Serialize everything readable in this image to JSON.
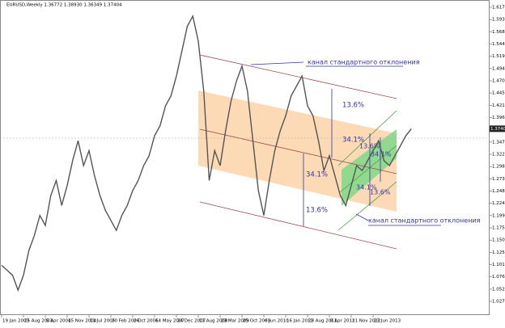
{
  "header": {
    "title": "EURUSD,Weekly  1.36772 1.38930 1.36349 1.37404"
  },
  "chart_data": {
    "type": "line",
    "color": "#555555",
    "categories": [
      "19 Jan 2003",
      null,
      null,
      null,
      "25 Aug 2003",
      null,
      null,
      null,
      "5 Apr 2004",
      null,
      null,
      null,
      "15 Nov 2004",
      null,
      null,
      null,
      "11 Jul 2005",
      null,
      null,
      null,
      "20 Feb 2006",
      null,
      null,
      null,
      "2 Oct 2006",
      null,
      null,
      null,
      "14 May 2007",
      null,
      null,
      null,
      "24 Dec 2007",
      null,
      null,
      null,
      "11 Aug 2008",
      null,
      null,
      null,
      "23 Mar 2009",
      null,
      null,
      null,
      "25 Oct 2009",
      null,
      null,
      null,
      "6 Jun 2010",
      null,
      null,
      null,
      "16 Jan 2011",
      null,
      null,
      null,
      "28 Aug 2011",
      null,
      null,
      null,
      "8 Apr 2012",
      null,
      null,
      null,
      "11 Nov 2012",
      null,
      null,
      null,
      "23 Jun 2013",
      null,
      null,
      null,
      null,
      null,
      null,
      null
    ],
    "values": [
      1.1,
      1.09,
      1.08,
      1.05,
      1.08,
      1.13,
      1.16,
      1.2,
      1.18,
      1.24,
      1.27,
      1.22,
      1.26,
      1.31,
      1.35,
      1.3,
      1.33,
      1.28,
      1.24,
      1.21,
      1.19,
      1.17,
      1.2,
      1.22,
      1.25,
      1.27,
      1.3,
      1.32,
      1.36,
      1.38,
      1.42,
      1.44,
      1.48,
      1.53,
      1.58,
      1.6,
      1.55,
      1.45,
      1.27,
      1.33,
      1.3,
      1.37,
      1.43,
      1.47,
      1.5,
      1.45,
      1.35,
      1.25,
      1.2,
      1.27,
      1.33,
      1.37,
      1.4,
      1.44,
      1.46,
      1.48,
      1.42,
      1.4,
      1.35,
      1.29,
      1.32,
      1.28,
      1.24,
      1.22,
      1.26,
      1.3,
      1.29,
      1.31,
      1.33,
      1.35,
      1.31,
      1.3,
      1.32,
      1.34,
      1.36,
      1.374
    ],
    "ylim": [
      1.0,
      1.6325
    ],
    "yticks": [
      {
        "value": 1.6179,
        "label": "1.61790"
      },
      {
        "value": 1.5933,
        "label": "1.59330"
      },
      {
        "value": 1.5687,
        "label": "1.56870"
      },
      {
        "value": 1.5441,
        "label": "1.54410"
      },
      {
        "value": 1.5195,
        "label": "1.51950"
      },
      {
        "value": 1.4949,
        "label": "1.49490"
      },
      {
        "value": 1.4703,
        "label": "1.47030"
      },
      {
        "value": 1.4457,
        "label": "1.44570"
      },
      {
        "value": 1.4211,
        "label": "1.42110"
      },
      {
        "value": 1.3965,
        "label": "1.39650"
      },
      {
        "value": 1.3473,
        "label": "1.34730"
      },
      {
        "value": 1.3227,
        "label": "1.32270"
      },
      {
        "value": 1.2981,
        "label": "1.29810"
      },
      {
        "value": 1.2735,
        "label": "1.27350"
      },
      {
        "value": 1.2489,
        "label": "1.24890"
      },
      {
        "value": 1.2243,
        "label": "1.22430"
      },
      {
        "value": 1.1997,
        "label": "1.19970"
      },
      {
        "value": 1.1751,
        "label": "1.17510"
      },
      {
        "value": 1.1505,
        "label": "1.15050"
      },
      {
        "value": 1.1259,
        "label": "1.12590"
      },
      {
        "value": 1.1013,
        "label": "1.10130"
      },
      {
        "value": 1.0767,
        "label": "1.07670"
      },
      {
        "value": 1.0521,
        "label": "1.05210"
      },
      {
        "value": 1.0275,
        "label": "1.02750"
      }
    ],
    "current_price": {
      "value": 1.37404,
      "label": "1.37404"
    },
    "annotations": [
      "канал стандартного отклонения",
      "канал стандартного отклонения",
      "13.6%",
      "34.1%",
      "34.1%",
      "13.6%",
      "13.6%",
      "34.1%",
      "34.1%",
      "13.6%"
    ]
  }
}
